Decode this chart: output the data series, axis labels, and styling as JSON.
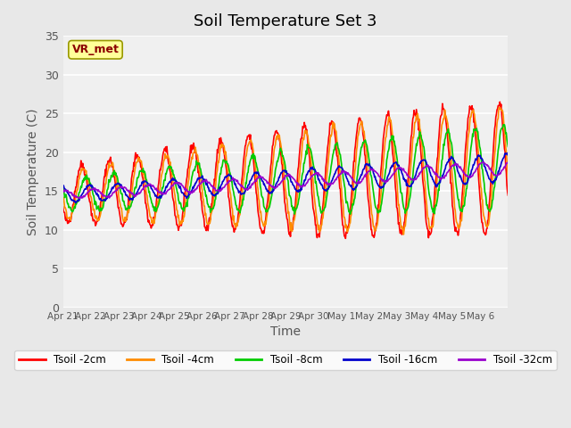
{
  "title": "Soil Temperature Set 3",
  "xlabel": "Time",
  "ylabel": "Soil Temperature (C)",
  "ylim": [
    0,
    35
  ],
  "yticks": [
    0,
    5,
    10,
    15,
    20,
    25,
    30,
    35
  ],
  "annotation": "VR_met",
  "annotation_color": "#8B0000",
  "annotation_bg": "#FFFF99",
  "bg_color": "#E8E8E8",
  "plot_bg": "#F0F0F0",
  "series": [
    {
      "label": "Tsoil -2cm",
      "color": "#FF0000"
    },
    {
      "label": "Tsoil -4cm",
      "color": "#FF8C00"
    },
    {
      "label": "Tsoil -8cm",
      "color": "#00CC00"
    },
    {
      "label": "Tsoil -16cm",
      "color": "#0000CC"
    },
    {
      "label": "Tsoil -32cm",
      "color": "#9900CC"
    }
  ],
  "x_tick_labels": [
    "Apr 21",
    "Apr 22",
    "Apr 23",
    "Apr 24",
    "Apr 25",
    "Apr 26",
    "Apr 27",
    "Apr 28",
    "Apr 29",
    "Apr 30",
    "May 1",
    "May 2",
    "May 3",
    "May 4",
    "May 5",
    "May 6"
  ],
  "num_days": 16,
  "points_per_day": 48
}
